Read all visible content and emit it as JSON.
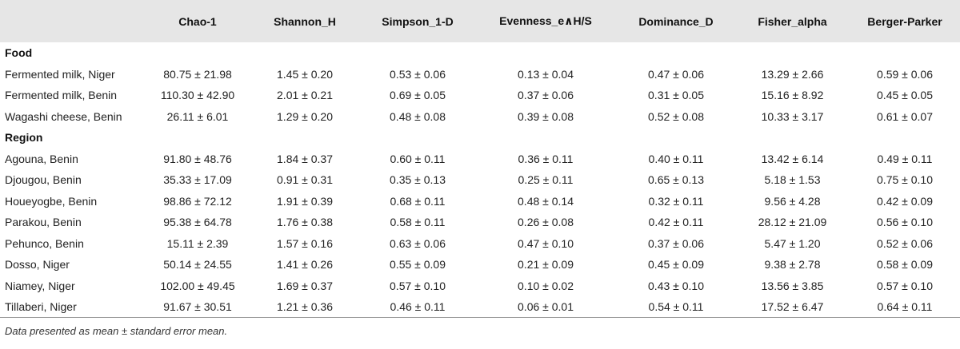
{
  "table": {
    "headers": [
      "",
      "Chao-1",
      "Shannon_H",
      "Simpson_1-D",
      "Evenness_e∧H/S",
      "Dominance_D",
      "Fisher_alpha",
      "Berger-Parker"
    ],
    "sections": [
      {
        "title": "Food",
        "rows": [
          [
            "Fermented milk, Niger",
            "80.75 ± 21.98",
            "1.45 ± 0.20",
            "0.53 ± 0.06",
            "0.13 ± 0.04",
            "0.47 ± 0.06",
            "13.29 ± 2.66",
            "0.59 ± 0.06"
          ],
          [
            "Fermented milk, Benin",
            "110.30 ± 42.90",
            "2.01 ± 0.21",
            "0.69 ± 0.05",
            "0.37 ± 0.06",
            "0.31 ± 0.05",
            "15.16 ± 8.92",
            "0.45 ± 0.05"
          ],
          [
            "Wagashi cheese, Benin",
            "26.11 ± 6.01",
            "1.29 ± 0.20",
            "0.48 ± 0.08",
            "0.39 ± 0.08",
            "0.52 ± 0.08",
            "10.33 ± 3.17",
            "0.61 ± 0.07"
          ]
        ]
      },
      {
        "title": "Region",
        "rows": [
          [
            "Agouna, Benin",
            "91.80 ± 48.76",
            "1.84 ± 0.37",
            "0.60 ± 0.11",
            "0.36 ± 0.11",
            "0.40 ± 0.11",
            "13.42 ± 6.14",
            "0.49 ± 0.11"
          ],
          [
            "Djougou, Benin",
            "35.33 ± 17.09",
            "0.91 ± 0.31",
            "0.35 ± 0.13",
            "0.25 ± 0.11",
            "0.65 ± 0.13",
            "5.18 ± 1.53",
            "0.75 ± 0.10"
          ],
          [
            "Houeyogbe, Benin",
            "98.86 ± 72.12",
            "1.91 ± 0.39",
            "0.68 ± 0.11",
            "0.48 ± 0.14",
            "0.32 ± 0.11",
            "9.56 ± 4.28",
            "0.42 ± 0.09"
          ],
          [
            "Parakou, Benin",
            "95.38 ± 64.78",
            "1.76 ± 0.38",
            "0.58 ± 0.11",
            "0.26 ± 0.08",
            "0.42 ± 0.11",
            "28.12 ± 21.09",
            "0.56 ± 0.10"
          ],
          [
            "Pehunco, Benin",
            "15.11 ± 2.39",
            "1.57 ± 0.16",
            "0.63 ± 0.06",
            "0.47 ± 0.10",
            "0.37 ± 0.06",
            "5.47 ± 1.20",
            "0.52 ± 0.06"
          ],
          [
            "Dosso, Niger",
            "50.14 ± 24.55",
            "1.41 ± 0.26",
            "0.55 ± 0.09",
            "0.21 ± 0.09",
            "0.45 ± 0.09",
            "9.38 ± 2.78",
            "0.58 ± 0.09"
          ],
          [
            "Niamey, Niger",
            "102.00 ± 49.45",
            "1.69 ± 0.37",
            "0.57 ± 0.10",
            "0.10 ± 0.02",
            "0.43 ± 0.10",
            "13.56 ± 3.85",
            "0.57 ± 0.10"
          ],
          [
            "Tillaberi, Niger",
            "91.67 ± 30.51",
            "1.21 ± 0.36",
            "0.46 ± 0.11",
            "0.06 ± 0.01",
            "0.54 ± 0.11",
            "17.52 ± 6.47",
            "0.64 ± 0.11"
          ]
        ]
      }
    ],
    "footnote": "Data presented as mean ± standard error mean."
  }
}
